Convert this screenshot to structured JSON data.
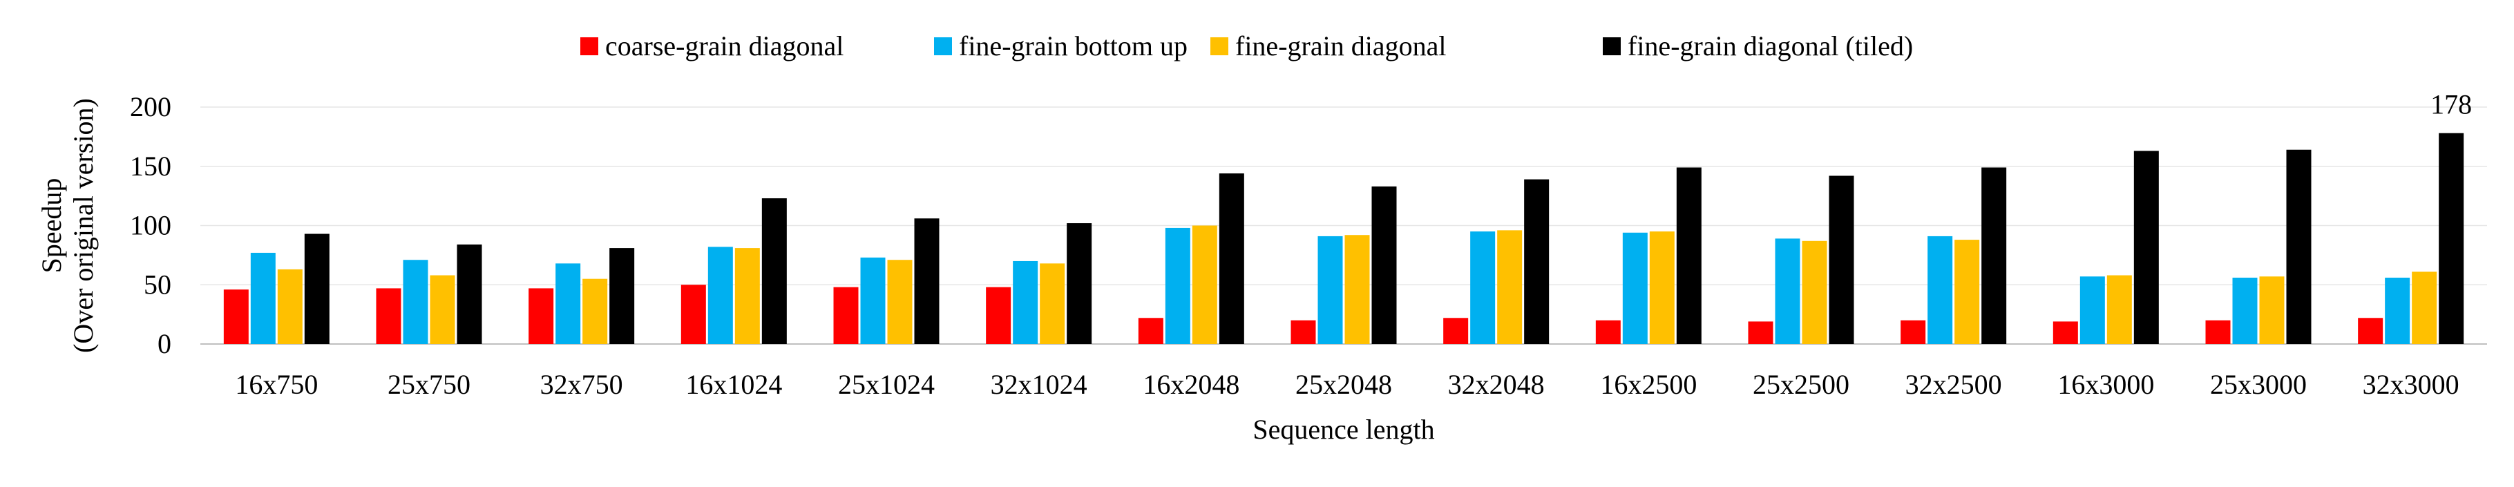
{
  "chart_data": {
    "type": "bar",
    "title": "",
    "xlabel": "Sequence length",
    "ylabel": [
      "Speedup",
      "(Over original version)"
    ],
    "ylim": [
      0,
      200
    ],
    "yticks": [
      0,
      50,
      100,
      150,
      200
    ],
    "grid": true,
    "legend_position": "top",
    "categories": [
      "16x750",
      "25x750",
      "32x750",
      "16x1024",
      "25x1024",
      "32x1024",
      "16x2048",
      "25x2048",
      "32x2048",
      "16x2500",
      "25x2500",
      "32x2500",
      "16x3000",
      "25x3000",
      "32x3000"
    ],
    "series": [
      {
        "name": "coarse-grain diagonal",
        "color": "#ff0000",
        "values": [
          46,
          47,
          47,
          50,
          48,
          48,
          22,
          20,
          22,
          20,
          19,
          20,
          19,
          20,
          22
        ]
      },
      {
        "name": "fine-grain bottom up",
        "color": "#00b0f0",
        "values": [
          77,
          71,
          68,
          82,
          73,
          70,
          98,
          91,
          95,
          94,
          89,
          91,
          57,
          56,
          56
        ]
      },
      {
        "name": "fine-grain diagonal",
        "color": "#ffc000",
        "values": [
          63,
          58,
          55,
          81,
          71,
          68,
          100,
          92,
          96,
          95,
          87,
          88,
          58,
          57,
          61
        ]
      },
      {
        "name": "fine-grain diagonal (tiled)",
        "color": "#000000",
        "values": [
          93,
          84,
          81,
          123,
          106,
          102,
          144,
          133,
          139,
          149,
          142,
          149,
          163,
          164,
          178
        ]
      }
    ],
    "annotations": [
      {
        "text": "178",
        "category": "32x3000",
        "series": "fine-grain diagonal (tiled)"
      }
    ]
  }
}
